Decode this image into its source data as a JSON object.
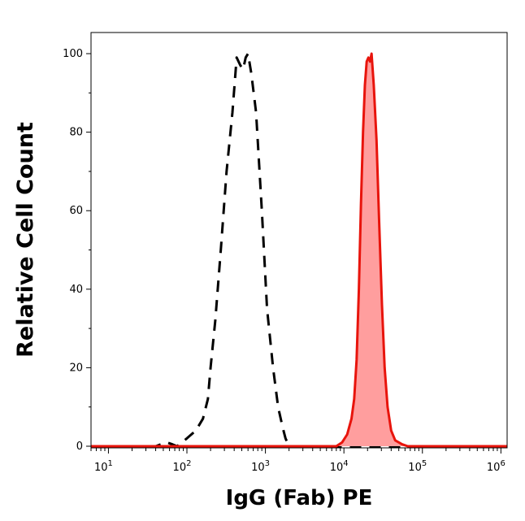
{
  "chart_data": {
    "type": "area",
    "title": "",
    "xlabel": "IgG (Fab) PE",
    "ylabel": "Relative Cell Count",
    "x_scale": "log",
    "xlim": [
      6,
      1200000
    ],
    "ylim": [
      -1,
      100
    ],
    "grid": false,
    "x_ticks": [
      {
        "value": 10,
        "base": "10",
        "exp": "1"
      },
      {
        "value": 100,
        "base": "10",
        "exp": "2"
      },
      {
        "value": 1000,
        "base": "10",
        "exp": "3"
      },
      {
        "value": 10000,
        "base": "10",
        "exp": "4"
      },
      {
        "value": 100000,
        "base": "10",
        "exp": "5"
      },
      {
        "value": 1000000,
        "base": "10",
        "exp": "6"
      }
    ],
    "y_ticks": [
      0,
      20,
      40,
      60,
      80,
      100
    ],
    "series": [
      {
        "style": "dashed",
        "color": "#000000",
        "fill": "none",
        "x": [
          6,
          40,
          55,
          65,
          75,
          100,
          130,
          160,
          185,
          200,
          230,
          270,
          320,
          380,
          430,
          480,
          520,
          560,
          600,
          660,
          760,
          900,
          1050,
          1250,
          1450,
          1650,
          1800,
          2000,
          1200000
        ],
        "y": [
          0,
          0,
          1,
          0.5,
          0,
          2,
          4,
          7,
          12,
          20,
          32,
          50,
          70,
          85,
          99,
          97,
          96,
          99,
          100,
          95,
          85,
          60,
          35,
          20,
          10,
          5,
          2,
          0,
          0
        ]
      },
      {
        "style": "solid",
        "color": "#e8140c",
        "fill": "#ff9e9e",
        "x": [
          6,
          8000,
          9500,
          11000,
          12500,
          13500,
          14500,
          15500,
          16500,
          17500,
          18500,
          19500,
          20500,
          21500,
          22500,
          24000,
          26000,
          28000,
          30500,
          33000,
          36000,
          40000,
          45000,
          55000,
          65000,
          1200000
        ],
        "y": [
          0,
          0,
          1,
          3,
          7,
          12,
          22,
          40,
          62,
          80,
          92,
          98,
          99,
          98,
          100,
          92,
          78,
          58,
          36,
          20,
          10,
          4,
          1.5,
          0.5,
          0,
          0
        ]
      }
    ]
  }
}
